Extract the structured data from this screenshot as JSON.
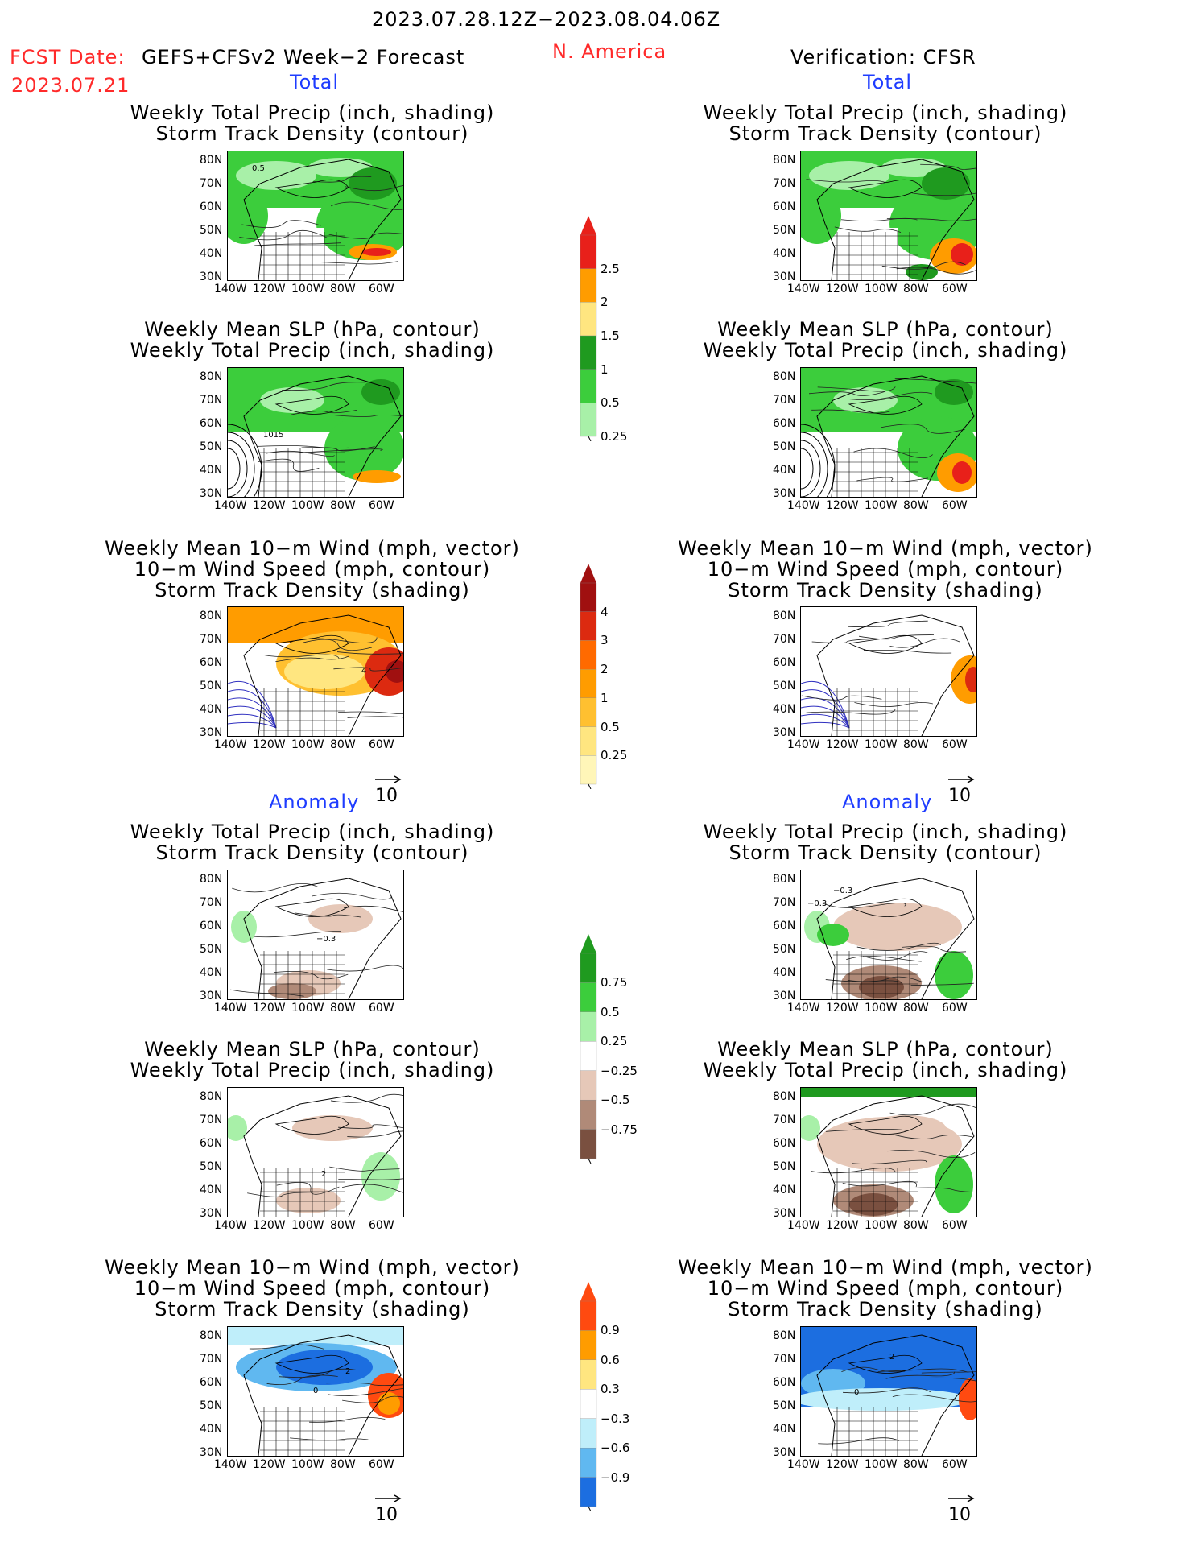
{
  "header": {
    "date_range": "2023.07.28.12Z−2023.08.04.06Z",
    "fcst_label": "FCST Date:",
    "fcst_date": "2023.07.21",
    "model": "GEFS+CFSv2 Week−2 Forecast",
    "region": "N. America",
    "verification": "Verification: CFSR"
  },
  "sections": {
    "total": "Total",
    "anomaly": "Anomaly"
  },
  "panel_titles": {
    "precip_storm": [
      "Weekly Total Precip (inch, shading)",
      "Storm Track Density (contour)"
    ],
    "slp_precip": [
      "Weekly Mean SLP (hPa, contour)",
      "Weekly Total Precip (inch, shading)"
    ],
    "wind": [
      "Weekly Mean 10−m Wind (mph, vector)",
      "10−m Wind Speed (mph, contour)",
      "Storm Track Density (shading)"
    ]
  },
  "axes": {
    "lat": [
      "80N",
      "70N",
      "60N",
      "50N",
      "40N",
      "30N"
    ],
    "lon": [
      "140W",
      "120W",
      "100W",
      "80W",
      "60W"
    ]
  },
  "vector_ref": "10",
  "map_labels": {
    "f_total_precip": "0.5",
    "f_total_slp": "1015",
    "f_total_wind": "4",
    "f_anom_precip": "−0.3",
    "v_anom_precip_a": "−0.3",
    "v_anom_precip_b": "−0.3",
    "f_anom_slp": "2",
    "f_anom_wind_a": "2",
    "f_anom_wind_b": "0",
    "v_anom_wind_a": "2",
    "v_anom_wind_b": "0"
  },
  "colorbars": {
    "total_precip": {
      "labels": [
        "2.5",
        "2",
        "1.5",
        "1",
        "0.5",
        "0.25"
      ],
      "colors": [
        "#e8201a",
        "#ff9c00",
        "#ffe680",
        "#1f9a1f",
        "#3ccd3c",
        "#a8f0a8"
      ]
    },
    "total_storm": {
      "labels": [
        "4",
        "3",
        "2",
        "1",
        "0.5",
        "0.25"
      ],
      "colors": [
        "#a01010",
        "#dc2a10",
        "#ff6a00",
        "#ff9c00",
        "#ffc030",
        "#ffe680",
        "#fff6b8"
      ]
    },
    "anom_precip": {
      "labels": [
        "0.75",
        "0.5",
        "0.25",
        "−0.25",
        "−0.5",
        "−0.75"
      ],
      "colors": [
        "#1f9a1f",
        "#3ccd3c",
        "#a8f0a8",
        "#ffffff",
        "#e6c8b8",
        "#b08a78",
        "#7a5040"
      ]
    },
    "anom_storm": {
      "labels": [
        "0.9",
        "0.6",
        "0.3",
        "−0.3",
        "−0.6",
        "−0.9"
      ],
      "colors": [
        "#ff4a10",
        "#ff9c00",
        "#ffe680",
        "#ffffff",
        "#bfeefa",
        "#60b8f0",
        "#1c6ee0"
      ]
    }
  }
}
